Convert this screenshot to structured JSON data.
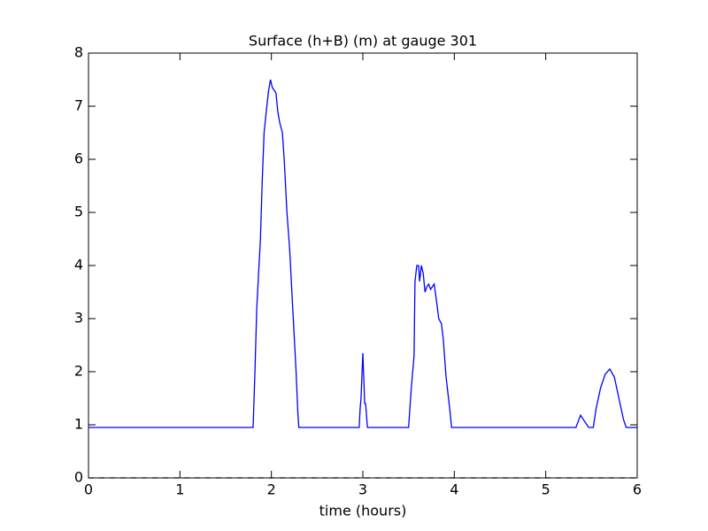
{
  "chart_data": {
    "type": "line",
    "title": "Surface (h+B) (m) at gauge 301",
    "xlabel": "time (hours)",
    "series": [
      {
        "color": "#0000ff",
        "dash": false,
        "x": [
          0,
          1.8,
          1.82,
          1.84,
          1.88,
          1.9,
          1.92,
          1.95,
          1.97,
          1.99,
          2.01,
          2.03,
          2.05,
          2.07,
          2.09,
          2.12,
          2.14,
          2.17,
          2.2,
          2.23,
          2.27,
          2.29,
          2.3,
          2.96,
          2.97,
          2.98,
          3.0,
          3.02,
          3.03,
          3.05,
          3.5,
          3.53,
          3.56,
          3.57,
          3.59,
          3.61,
          3.62,
          3.64,
          3.66,
          3.68,
          3.7,
          3.72,
          3.74,
          3.76,
          3.78,
          3.8,
          3.83,
          3.86,
          3.88,
          3.91,
          3.95,
          3.97,
          5.33,
          5.38,
          5.43,
          5.47,
          5.52,
          5.55,
          5.6,
          5.65,
          5.7,
          5.75,
          5.8,
          5.85,
          5.88,
          6.0
        ],
        "values": [
          0.95,
          0.95,
          2.0,
          3.2,
          4.5,
          5.6,
          6.5,
          7.0,
          7.3,
          7.5,
          7.35,
          7.3,
          7.25,
          6.9,
          6.7,
          6.5,
          6.0,
          5.0,
          4.3,
          3.3,
          2.0,
          1.2,
          0.95,
          0.95,
          1.3,
          1.5,
          2.35,
          1.4,
          1.4,
          0.95,
          0.95,
          1.7,
          2.3,
          3.7,
          4.0,
          4.0,
          3.7,
          4.0,
          3.85,
          3.5,
          3.6,
          3.65,
          3.55,
          3.6,
          3.65,
          3.4,
          3.0,
          2.9,
          2.6,
          1.9,
          1.3,
          0.95,
          0.95,
          1.18,
          1.05,
          0.95,
          0.95,
          1.3,
          1.7,
          1.95,
          2.05,
          1.9,
          1.5,
          1.1,
          0.95,
          0.95
        ]
      },
      {
        "color": "#000000",
        "dash": true,
        "x": [
          0,
          6
        ],
        "values": [
          0,
          0
        ]
      }
    ],
    "xlim": [
      0,
      6
    ],
    "xticks": [
      0,
      1,
      2,
      3,
      4,
      5,
      6
    ],
    "ylim": [
      0,
      8
    ],
    "yticks": [
      0,
      1,
      2,
      3,
      4,
      5,
      6,
      7,
      8
    ]
  }
}
